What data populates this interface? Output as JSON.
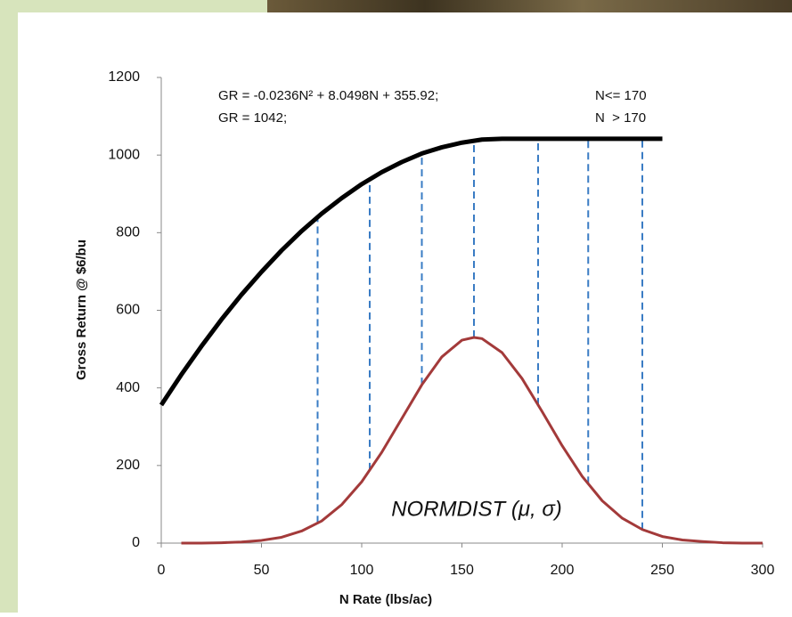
{
  "chart_data": {
    "type": "line",
    "x_label": "N Rate (lbs/ac)",
    "y_label": "Gross Return @ $6/bu",
    "xlim": [
      0,
      300
    ],
    "xticks": [
      0,
      50,
      100,
      150,
      200,
      250,
      300
    ],
    "ylim": [
      0,
      1200
    ],
    "yticks": [
      0,
      200,
      400,
      600,
      800,
      1000,
      1200
    ],
    "grid": false,
    "annotations": [
      "GR = -0.0236N² + 8.0498N + 355.92;",
      "N<= 170",
      "GR = 1042;",
      "N  > 170",
      "NORMDIST (μ, σ)"
    ],
    "series": [
      {
        "color": "#000000",
        "x": [
          0,
          10,
          20,
          30,
          40,
          50,
          60,
          70,
          80,
          90,
          100,
          110,
          120,
          130,
          140,
          150,
          160,
          170,
          180,
          190,
          200,
          210,
          220,
          230,
          240,
          250
        ],
        "values": [
          356,
          434,
          507,
          576,
          640,
          699,
          754,
          804,
          849,
          889,
          925,
          956,
          982,
          1004,
          1020,
          1032,
          1040,
          1042,
          1042,
          1042,
          1042,
          1042,
          1042,
          1042,
          1042,
          1042
        ]
      },
      {
        "color": "#a33a3a",
        "x": [
          10,
          20,
          30,
          40,
          50,
          60,
          70,
          80,
          90,
          100,
          110,
          120,
          130,
          140,
          150,
          156,
          160,
          170,
          180,
          190,
          200,
          210,
          220,
          230,
          240,
          250,
          260,
          270,
          280,
          290,
          300
        ],
        "values": [
          0,
          0,
          1,
          3,
          7,
          15,
          31,
          57,
          99,
          158,
          234,
          321,
          408,
          480,
          523,
          530,
          527,
          491,
          424,
          339,
          251,
          172,
          109,
          64,
          35,
          17,
          8,
          4,
          1,
          0,
          0
        ]
      }
    ],
    "markers": {
      "color": "#3a7cc4",
      "x": [
        78,
        104,
        130,
        156,
        188,
        213,
        240
      ]
    }
  }
}
